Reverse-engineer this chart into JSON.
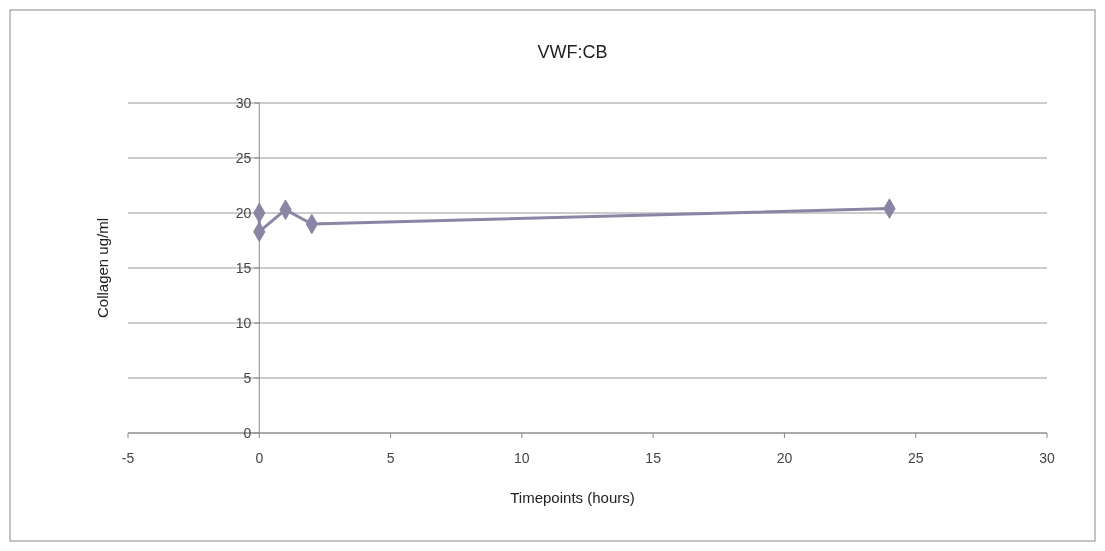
{
  "chart_data": {
    "type": "line",
    "title": "VWF:CB",
    "xlabel": "Timepoints (hours)",
    "ylabel": "Collagen ug/ml",
    "x": [
      0,
      0,
      1,
      2,
      24
    ],
    "series": [
      {
        "color": "#8c84a4",
        "values": [
          20,
          18.3,
          20.3,
          19,
          20.4
        ]
      }
    ],
    "xlim": [
      -5,
      30
    ],
    "xticks": [
      -5,
      0,
      5,
      10,
      15,
      20,
      25,
      30
    ],
    "ylim": [
      0,
      30
    ],
    "yticks": [
      0,
      5,
      10,
      15,
      20,
      25,
      30
    ],
    "grid": "y",
    "marker": "diamond",
    "line_style": "solid"
  }
}
